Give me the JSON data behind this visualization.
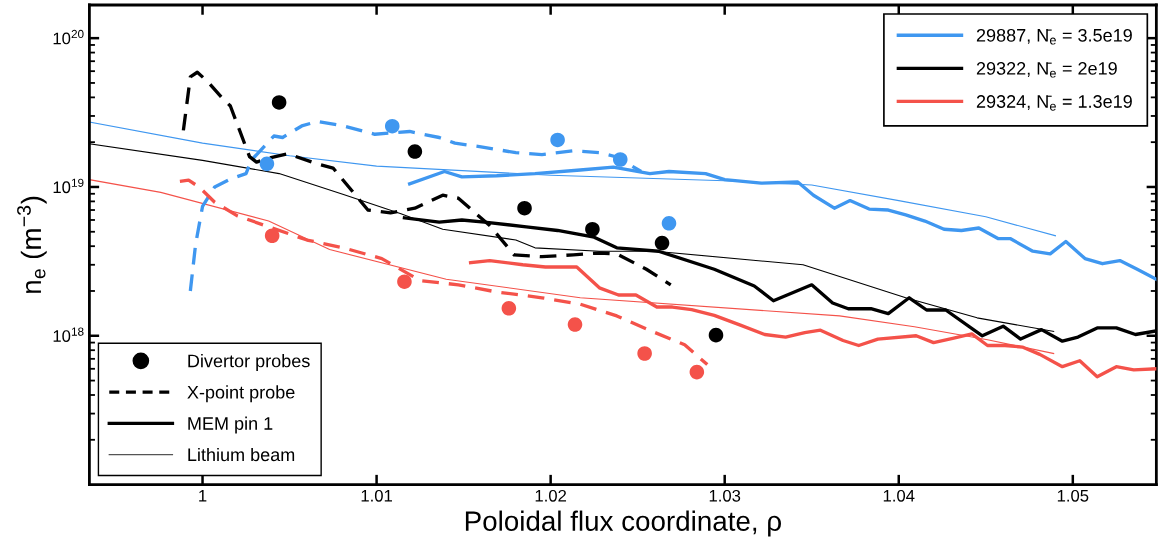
{
  "chart_data": {
    "type": "line",
    "xlabel": "Poloidal flux coordinate, ρ",
    "ylabel": "n$_{e}$ (m$^{−3}$)",
    "xlim": [
      0.9935,
      1.0548
    ],
    "xticks": [
      1,
      1.01,
      1.02,
      1.03,
      1.04,
      1.05
    ],
    "ylim": [
      1e+17,
      1.67e+20
    ],
    "yticks": [
      {
        "value": 1e+18,
        "label": "10$^{18}$"
      },
      {
        "value": 1e+19,
        "label": "10$^{19}$"
      },
      {
        "value": 1e+20,
        "label": "10$^{20}$"
      }
    ],
    "log": "y",
    "grid": false,
    "legend": "top right",
    "marker": "none",
    "annotations": [
      "X-point probe",
      "MEM pin 1",
      "Lithium beam"
    ],
    "series": [
      {
        "type": "line",
        "line_style": "solid",
        "color": "#3f97f0",
        "x": [
          0.9935,
          1.0,
          1.005,
          1.01,
          1.02,
          1.03,
          1.035,
          1.04,
          1.045,
          1.049
        ],
        "values": [
          2.73e+19,
          1.97e+19,
          1.62e+19,
          1.38e+19,
          1.2e+19,
          1.1e+19,
          1.03e+19,
          8.1e+18,
          6.3e+18,
          4.7e+18
        ]
      },
      {
        "type": "line",
        "line_style": "solid",
        "color": "#000000",
        "x": [
          0.9935,
          1.0,
          1.0044,
          1.0081,
          1.0114,
          1.0138,
          1.018,
          1.0191,
          1.0228,
          1.026,
          1.0345,
          1.0404,
          1.0445,
          1.0489
        ],
        "values": [
          1.95e+19,
          1.51e+19,
          1.23e+19,
          8.9e+18,
          6.6e+18,
          5.2e+18,
          4.4e+18,
          3.9e+18,
          3.7e+18,
          3.7e+18,
          3e+18,
          1.8e+18,
          1.32e+18,
          1.07e+18
        ]
      },
      {
        "type": "line",
        "line_style": "solid",
        "color": "#f4524a",
        "x": [
          0.9935,
          0.9976,
          1.0038,
          1.0073,
          1.014,
          1.0217,
          1.0366,
          1.0409,
          1.0451,
          1.0489
        ],
        "values": [
          1.12e+19,
          9.2e+18,
          5.9e+18,
          3.8e+18,
          2.4e+18,
          1.8e+18,
          1.36e+18,
          1.15e+18,
          9.4e+17,
          7.6e+17
        ]
      },
      {
        "type": "line",
        "line_style": "dashed",
        "color": "#3f97f0",
        "x": [
          0.9993,
          0.9996,
          1.0,
          1.0007,
          1.0016,
          1.0025,
          1.0028,
          1.0041,
          1.0046,
          1.0057,
          1.0066,
          1.0081,
          1.0099,
          1.0119,
          1.0136,
          1.0145,
          1.016,
          1.018,
          1.0195,
          1.0213,
          1.0228,
          1.0238,
          1.0252
        ],
        "values": [
          2e+18,
          4.1e+18,
          7.4e+18,
          1e+19,
          1.13e+19,
          1.23e+19,
          1.51e+19,
          2.2e+19,
          2.15e+19,
          2.57e+19,
          2.76e+19,
          2.57e+19,
          2.26e+19,
          2.36e+19,
          2.15e+19,
          1.97e+19,
          1.86e+19,
          1.7e+19,
          1.65e+19,
          1.75e+19,
          1.7e+19,
          1.59e+19,
          1.27e+19
        ]
      },
      {
        "type": "line",
        "line_style": "dashed",
        "color": "#000000",
        "x": [
          0.9989,
          0.9993,
          0.9997,
          1.0003,
          1.0011,
          1.0016,
          1.0027,
          1.0031,
          1.0038,
          1.0049,
          1.0066,
          1.0075,
          1.0095,
          1.0108,
          1.0122,
          1.0138,
          1.0147,
          1.0165,
          1.0179,
          1.0195,
          1.0213,
          1.0228,
          1.0238,
          1.0255,
          1.0269
        ],
        "values": [
          2.4e+19,
          5.5e+19,
          5.9e+19,
          5.1e+19,
          4e+19,
          3.5e+19,
          1.6e+19,
          1.47e+19,
          1.56e+19,
          1.67e+19,
          1.43e+19,
          1.34e+19,
          7e+18,
          6.7e+18,
          7.2e+18,
          8.8e+18,
          8.4e+18,
          5.5e+18,
          3.5e+18,
          3.4e+18,
          3.5e+18,
          3.6e+18,
          3.55e+18,
          2.8e+18,
          2.2e+18
        ]
      },
      {
        "type": "line",
        "line_style": "dashed",
        "color": "#f4524a",
        "x": [
          0.9987,
          0.9992,
          0.9998,
          1.0007,
          1.002,
          1.0038,
          1.006,
          1.0081,
          1.0103,
          1.0125,
          1.0147,
          1.0169,
          1.0195,
          1.0217,
          1.0238,
          1.026,
          1.0277,
          1.029
        ],
        "values": [
          1.09e+19,
          1.11e+19,
          1e+19,
          7.9e+18,
          6.4e+18,
          5.4e+18,
          4.4e+18,
          3.9e+18,
          3.3e+18,
          2.35e+18,
          2.2e+18,
          1.97e+18,
          1.8e+18,
          1.63e+18,
          1.36e+18,
          1.05e+18,
          8.7e+17,
          6.4e+17
        ]
      },
      {
        "type": "line",
        "line_style": "solid",
        "color": "#3f97f0",
        "name": "29887, N̄$_{e}$ = 3.5e19",
        "x": [
          1.0119,
          1.0139,
          1.0149,
          1.0169,
          1.0191,
          1.0217,
          1.0236,
          1.0257,
          1.0268,
          1.0289,
          1.03,
          1.0321,
          1.0342,
          1.0351,
          1.0363,
          1.0372,
          1.0383,
          1.0394,
          1.0404,
          1.0415,
          1.0426,
          1.0436,
          1.0446,
          1.0457,
          1.0464,
          1.0477,
          1.0487,
          1.0496,
          1.0507,
          1.0517,
          1.0527,
          1.0537,
          1.0548
        ],
        "values": [
          1.05e+19,
          1.27e+19,
          1.17e+19,
          1.19e+19,
          1.23e+19,
          1.3e+19,
          1.36e+19,
          1.23e+19,
          1.27e+19,
          1.23e+19,
          1.12e+19,
          1.06e+19,
          1.08e+19,
          8.8e+18,
          7.2e+18,
          8.1e+18,
          7.1e+18,
          7e+18,
          6.5e+18,
          5.9e+18,
          5.2e+18,
          5.1e+18,
          5.3e+18,
          4.5e+18,
          4.5e+18,
          3.7e+18,
          3.55e+18,
          4.3e+18,
          3.3e+18,
          3.05e+18,
          3.2e+18,
          2.8e+18,
          2.4e+18
        ]
      },
      {
        "type": "line",
        "line_style": "solid",
        "color": "#000000",
        "name": "29322, N̄$_{e}$ = 2e19",
        "x": [
          1.0116,
          1.0136,
          1.0149,
          1.0162,
          1.0186,
          1.0204,
          1.0225,
          1.0238,
          1.0262,
          1.0294,
          1.0317,
          1.0328,
          1.035,
          1.0362,
          1.0371,
          1.0384,
          1.0394,
          1.0406,
          1.0416,
          1.0427,
          1.0448,
          1.046,
          1.047,
          1.0482,
          1.0494,
          1.0503,
          1.0514,
          1.0525,
          1.0536,
          1.0548
        ],
        "values": [
          6.2e+18,
          5.8e+18,
          6e+18,
          5.8e+18,
          5.4e+18,
          5.1e+18,
          4.6e+18,
          3.9e+18,
          3.7e+18,
          2.8e+18,
          2.16e+18,
          1.72e+18,
          2.2e+18,
          1.66e+18,
          1.52e+18,
          1.52e+18,
          1.41e+18,
          1.8e+18,
          1.49e+18,
          1.49e+18,
          1e+18,
          1.16e+18,
          9.5e+17,
          1.1e+18,
          9.2e+17,
          9.8e+17,
          1.13e+18,
          1.13e+18,
          1.02e+18,
          1.08e+18
        ]
      },
      {
        "type": "line",
        "line_style": "solid",
        "color": "#f4524a",
        "name": "29324, N̄$_{e}$ = 1.3e19",
        "x": [
          1.0154,
          1.0165,
          1.0184,
          1.0197,
          1.0215,
          1.0228,
          1.0239,
          1.0249,
          1.0261,
          1.027,
          1.0281,
          1.0294,
          1.0309,
          1.0323,
          1.0335,
          1.0346,
          1.0355,
          1.0368,
          1.0377,
          1.0388,
          1.041,
          1.042,
          1.0431,
          1.0442,
          1.0451,
          1.0461,
          1.0471,
          1.0481,
          1.0494,
          1.0504,
          1.0514,
          1.0525,
          1.0535,
          1.0548
        ],
        "values": [
          3.1e+18,
          3.2e+18,
          3e+18,
          2.9e+18,
          2.9e+18,
          2.1e+18,
          1.88e+18,
          1.88e+18,
          1.56e+18,
          1.56e+18,
          1.5e+18,
          1.37e+18,
          1.18e+18,
          1.02e+18,
          9.8e+17,
          1.05e+18,
          1.09e+18,
          9.3e+17,
          8.6e+17,
          9.5e+17,
          1e+18,
          9e+17,
          9.6e+17,
          1.03e+18,
          8.6e+17,
          8.6e+17,
          8.4e+17,
          7.5e+17,
          6.2e+17,
          6.8e+17,
          5.3e+17,
          6.2e+17,
          5.9e+17,
          6e+17
        ]
      },
      {
        "type": "scatter",
        "marker": "circle",
        "color": "#3f97f0",
        "x": [
          1.0037,
          1.0109,
          1.0204,
          1.024,
          1.0268
        ],
        "values": [
          1.43e+19,
          2.56e+19,
          2.07e+19,
          1.53e+19,
          5.7e+18
        ]
      },
      {
        "type": "scatter",
        "marker": "circle",
        "color": "#000000",
        "name": "Divertor probes",
        "x": [
          1.0044,
          1.0122,
          1.0185,
          1.0224,
          1.0264,
          1.0295
        ],
        "values": [
          3.7e+19,
          1.73e+19,
          7.2e+18,
          5.2e+18,
          4.2e+18,
          1.01e+18
        ]
      },
      {
        "type": "scatter",
        "marker": "circle",
        "color": "#f4524a",
        "x": [
          1.004,
          1.0116,
          1.0176,
          1.0214,
          1.0254,
          1.0284
        ],
        "values": [
          4.7e+18,
          2.31e+18,
          1.53e+18,
          1.19e+18,
          7.6e+17,
          5.7e+17
        ]
      }
    ]
  }
}
